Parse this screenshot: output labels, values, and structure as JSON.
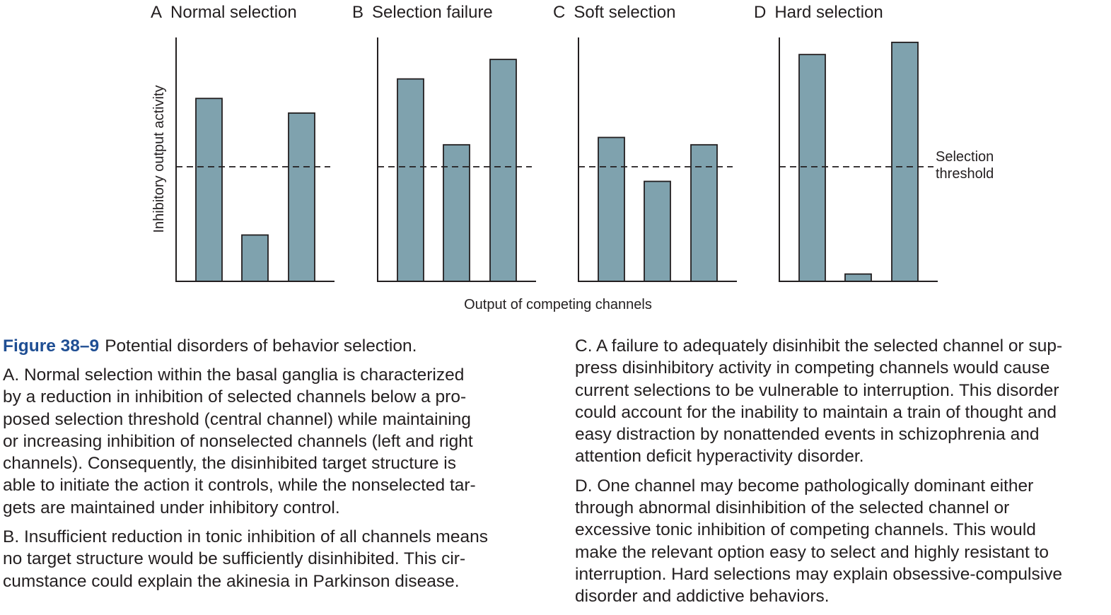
{
  "chart_data": [
    {
      "type": "bar",
      "panel_label": "A",
      "title": "Normal selection",
      "categories": [
        "",
        "",
        ""
      ],
      "values": [
        75,
        19,
        69
      ],
      "threshold": 47,
      "ylim": [
        0,
        100
      ],
      "ylabel": "Inhibitory output activity",
      "xlabel": "",
      "threshold_label": "",
      "grid": false,
      "ticks": false
    },
    {
      "type": "bar",
      "panel_label": "B",
      "title": "Selection failure",
      "categories": [
        "",
        "",
        ""
      ],
      "values": [
        83,
        56,
        91
      ],
      "threshold": 47,
      "ylim": [
        0,
        100
      ],
      "ylabel": "",
      "xlabel": "",
      "threshold_label": "",
      "grid": false,
      "ticks": false
    },
    {
      "type": "bar",
      "panel_label": "C",
      "title": "Soft selection",
      "categories": [
        "",
        "",
        ""
      ],
      "values": [
        59,
        41,
        56
      ],
      "threshold": 47,
      "ylim": [
        0,
        100
      ],
      "ylabel": "",
      "xlabel": "Output of competing channels",
      "threshold_label": "",
      "grid": false,
      "ticks": false
    },
    {
      "type": "bar",
      "panel_label": "D",
      "title": "Hard selection",
      "categories": [
        "",
        "",
        ""
      ],
      "values": [
        93,
        3,
        98
      ],
      "threshold": 47,
      "ylim": [
        0,
        100
      ],
      "ylabel": "",
      "xlabel": "",
      "threshold_label": [
        "Selection",
        "threshold"
      ],
      "grid": false,
      "ticks": false
    }
  ],
  "colors": {
    "bar_fill": "#7fa2ae",
    "stroke": "#231f20",
    "figure_label": "#1f4e93"
  },
  "caption": {
    "figure_label": "Figure 38–9",
    "title": "Potential disorders of behavior selection.",
    "paragraphs_left": [
      {
        "label": "A.",
        "lines": [
          "Normal selection within the basal ganglia is characterized",
          "by a reduction in inhibition of selected channels below a pro-",
          "posed selection threshold (central channel) while maintaining",
          "or increasing inhibition of nonselected channels (left and right",
          "channels). Consequently, the disinhibited target structure is",
          "able to initiate the action it controls, while the nonselected tar-",
          "gets are maintained under inhibitory control."
        ]
      },
      {
        "label": "B.",
        "lines": [
          "Insufficient reduction in tonic inhibition of all channels means",
          "no target structure would be sufficiently disinhibited. This cir-",
          "cumstance could explain the akinesia in Parkinson disease."
        ]
      }
    ],
    "paragraphs_right": [
      {
        "label": "C.",
        "lines": [
          "A failure to adequately disinhibit the selected channel or sup-",
          "press disinhibitory activity in competing channels would cause",
          "current selections to be vulnerable to interruption. This disorder",
          "could account for the inability to maintain a train of thought and",
          "easy distraction by nonattended events in schizophrenia and",
          "attention deficit hyperactivity disorder."
        ]
      },
      {
        "label": "D.",
        "lines": [
          "One channel may become pathologically dominant either",
          "through abnormal disinhibition of the selected channel or",
          "excessive tonic inhibition of competing channels. This would",
          "make the relevant option easy to select and highly resistant to",
          "interruption. Hard selections may explain obsessive-compulsive",
          "disorder and addictive behaviors."
        ]
      }
    ]
  }
}
